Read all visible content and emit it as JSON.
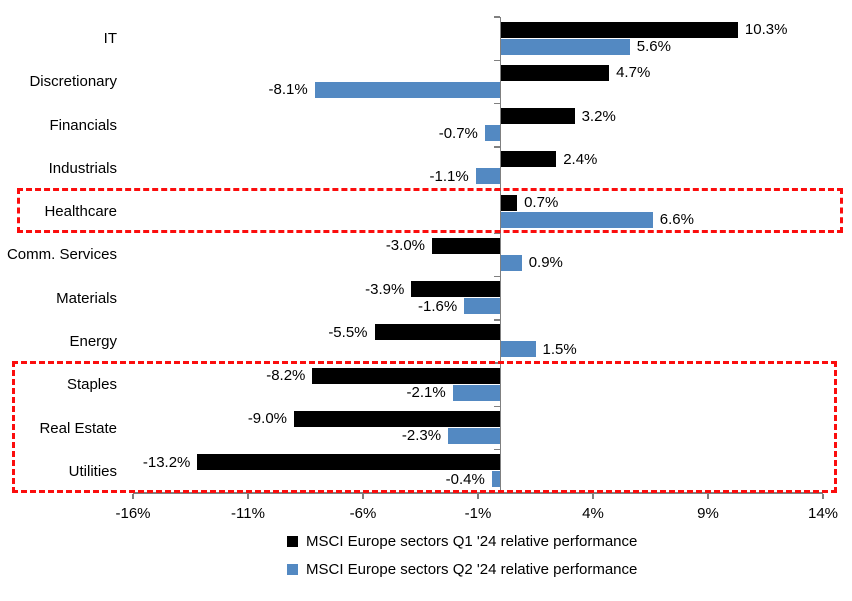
{
  "chart_data": {
    "type": "bar",
    "orientation": "horizontal",
    "title": "",
    "categories": [
      "IT",
      "Discretionary",
      "Financials",
      "Industrials",
      "Healthcare",
      "Comm. Services",
      "Materials",
      "Energy",
      "Staples",
      "Real Estate",
      "Utilities"
    ],
    "series": [
      {
        "name": "MSCI Europe sectors Q1 '24 relative performance",
        "color": "#000000",
        "values": [
          10.3,
          4.7,
          3.2,
          2.4,
          0.7,
          -3.0,
          -3.9,
          -5.5,
          -8.2,
          -9.0,
          -13.2
        ]
      },
      {
        "name": "MSCI Europe sectors Q2 '24 relative performance",
        "color": "#5389C2",
        "values": [
          5.6,
          -8.1,
          -0.7,
          -1.1,
          6.6,
          0.9,
          -1.6,
          1.5,
          -2.1,
          -2.3,
          -0.4
        ]
      }
    ],
    "value_labels": {
      "q1": [
        "10.3%",
        "4.7%",
        "3.2%",
        "2.4%",
        "0.7%",
        "-3.0%",
        "-3.9%",
        "-5.5%",
        "-8.2%",
        "-9.0%",
        "-13.2%"
      ],
      "q2": [
        "5.6%",
        "-8.1%",
        "-0.7%",
        "-1.1%",
        "6.6%",
        "0.9%",
        "-1.6%",
        "1.5%",
        "-2.1%",
        "-2.3%",
        "-0.4%"
      ]
    },
    "x_axis": {
      "min": -16,
      "max": 14,
      "tick_step": 5,
      "tick_values": [
        -16,
        -11,
        -6,
        -1,
        4,
        9,
        14
      ],
      "tick_labels": [
        "-16%",
        "-11%",
        "-6%",
        "-1%",
        "4%",
        "9%",
        "14%"
      ]
    },
    "grid": "off",
    "legend_position": "bottom",
    "highlights": [
      {
        "name": "healthcare-box",
        "categories": [
          "Healthcare"
        ],
        "style": "red-dashed",
        "color": "#FF0000"
      },
      {
        "name": "defensive-sectors-box",
        "categories": [
          "Staples",
          "Real Estate",
          "Utilities"
        ],
        "style": "red-dashed",
        "color": "#FF0000"
      }
    ],
    "colors": {
      "q1": "#000000",
      "q2": "#5389C2",
      "highlight": "#FF0000",
      "axis": "#808080"
    }
  }
}
